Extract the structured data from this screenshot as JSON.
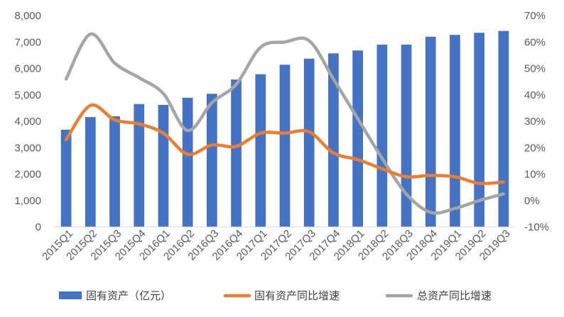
{
  "chart_data": {
    "type": "bar+line",
    "categories": [
      "2015Q1",
      "2015Q2",
      "2015Q3",
      "2015Q4",
      "2016Q1",
      "2016Q2",
      "2016Q3",
      "2016Q4",
      "2017Q1",
      "2017Q2",
      "2017Q3",
      "2017Q4",
      "2018Q1",
      "2018Q2",
      "2018Q3",
      "2018Q4",
      "2019Q1",
      "2019Q2",
      "2019Q3"
    ],
    "series": [
      {
        "name": "固有资产（亿元）",
        "type": "bar",
        "axis": "left",
        "color": "#4472C4",
        "values": [
          3680,
          4160,
          4190,
          4650,
          4620,
          4890,
          5040,
          5580,
          5780,
          6140,
          6370,
          6570,
          6680,
          6900,
          6900,
          7200,
          7270,
          7350,
          7420
        ]
      },
      {
        "name": "固有资产同比增速",
        "type": "line",
        "axis": "right",
        "color": "#ED7D31",
        "values": [
          23,
          36,
          30.5,
          29,
          25.5,
          17.5,
          21,
          20.5,
          25.5,
          25.5,
          26,
          18,
          15.5,
          12,
          9,
          9.5,
          9,
          6.5,
          7
        ]
      },
      {
        "name": "总资产同比增速",
        "type": "line",
        "axis": "right",
        "color": "#A5A5A5",
        "values": [
          46,
          63,
          52,
          46.5,
          40.5,
          26.5,
          37,
          44,
          58,
          60,
          60.5,
          46,
          31,
          16,
          2.5,
          -4.5,
          -3,
          0,
          2.5
        ]
      }
    ],
    "y_left": {
      "min": 0,
      "max": 8000,
      "step": 1000,
      "tick_labels": [
        "0",
        "1,000",
        "2,000",
        "3,000",
        "4,000",
        "5,000",
        "6,000",
        "7,000",
        "8,000"
      ]
    },
    "y_right": {
      "min": -10,
      "max": 70,
      "step": 10,
      "tick_labels": [
        "-10%",
        "0%",
        "10%",
        "20%",
        "30%",
        "40%",
        "50%",
        "60%",
        "70%"
      ]
    },
    "grid": false,
    "legend_position": "bottom"
  }
}
